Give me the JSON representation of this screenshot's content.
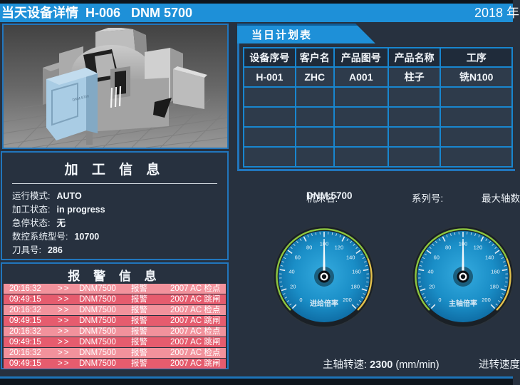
{
  "header": {
    "title": "当天设备详情  H-006   DNM 5700",
    "date": "2018 年"
  },
  "machine_image": {
    "badge": "DNM 5700"
  },
  "process_info": {
    "title": "加 工 信 息",
    "fields": [
      {
        "label": "运行模式:",
        "value": "AUTO"
      },
      {
        "label": "加工状态:",
        "value": "in progress"
      },
      {
        "label": "急停状态:",
        "value": "无"
      },
      {
        "label": "数控系统型号:",
        "value": "10700"
      },
      {
        "label": "刀具号:",
        "value": "286"
      }
    ]
  },
  "alarm_info": {
    "title": "报 警 信 息",
    "rows": [
      {
        "time": "20:16:32",
        "arrow": ">>",
        "device": "DNM7500",
        "type": "报警",
        "detail": "2007 AC 检点"
      },
      {
        "time": "09:49:15",
        "arrow": ">>",
        "device": "DNM7500",
        "type": "报警",
        "detail": "2007 AC 跳闸"
      },
      {
        "time": "20:16:32",
        "arrow": ">>",
        "device": "DNM7500",
        "type": "报警",
        "detail": "2007 AC 检点"
      },
      {
        "time": "09:49:15",
        "arrow": ">>",
        "device": "DNM7500",
        "type": "报警",
        "detail": "2007 AC 跳闸"
      },
      {
        "time": "20:16:32",
        "arrow": ">>",
        "device": "DNM7500",
        "type": "报警",
        "detail": "2007 AC 检点"
      },
      {
        "time": "09:49:15",
        "arrow": ">>",
        "device": "DNM7500",
        "type": "报警",
        "detail": "2007 AC 跳闸"
      },
      {
        "time": "20:16:32",
        "arrow": ">>",
        "device": "DNM7500",
        "type": "报警",
        "detail": "2007 AC 检点"
      },
      {
        "time": "09:49:15",
        "arrow": ">>",
        "device": "DNM7500",
        "type": "报警",
        "detail": "2007 AC 跳闸"
      }
    ]
  },
  "plan_table": {
    "tab": "当日计划表",
    "headers": [
      "设备序号",
      "客户名",
      "产品图号",
      "产品名称",
      "工序"
    ],
    "rows": [
      [
        "H-001",
        "ZHC",
        "A001",
        "柱子",
        "铣N100"
      ],
      [
        "",
        "",
        "",
        "",
        ""
      ],
      [
        "",
        "",
        "",
        "",
        ""
      ],
      [
        "",
        "",
        "",
        "",
        ""
      ],
      [
        "",
        "",
        "",
        "",
        ""
      ]
    ]
  },
  "machine_line": {
    "name_label": "机床名:",
    "name_value": "DNM 5700",
    "serial_label": "系列号:",
    "axis_label": "最大轴数"
  },
  "gauges": [
    {
      "label": "进给倍率",
      "min": 0,
      "max": 200,
      "step": 20,
      "value": 100,
      "zones": [
        {
          "to": 150,
          "color": "#8dc63f"
        },
        {
          "to": 200,
          "color": "#e3c24d"
        }
      ]
    },
    {
      "label": "主轴倍率",
      "min": 0,
      "max": 200,
      "step": 20,
      "value": 100,
      "zones": [
        {
          "to": 150,
          "color": "#8dc63f"
        },
        {
          "to": 200,
          "color": "#e3c24d"
        }
      ]
    }
  ],
  "bottom": {
    "spindle_label": "主轴转速:",
    "spindle_value": "2300",
    "spindle_unit": "(mm/min)",
    "feed_label": "进转速度"
  },
  "colors": {
    "accent_blue": "#1e90d8",
    "panel_border": "#2176bd",
    "table_border": "#1886cf",
    "alarm_light": "#f2929c",
    "alarm_dark": "#e65c6e",
    "background": "#27313f",
    "strip_dark": "#0e151d"
  }
}
